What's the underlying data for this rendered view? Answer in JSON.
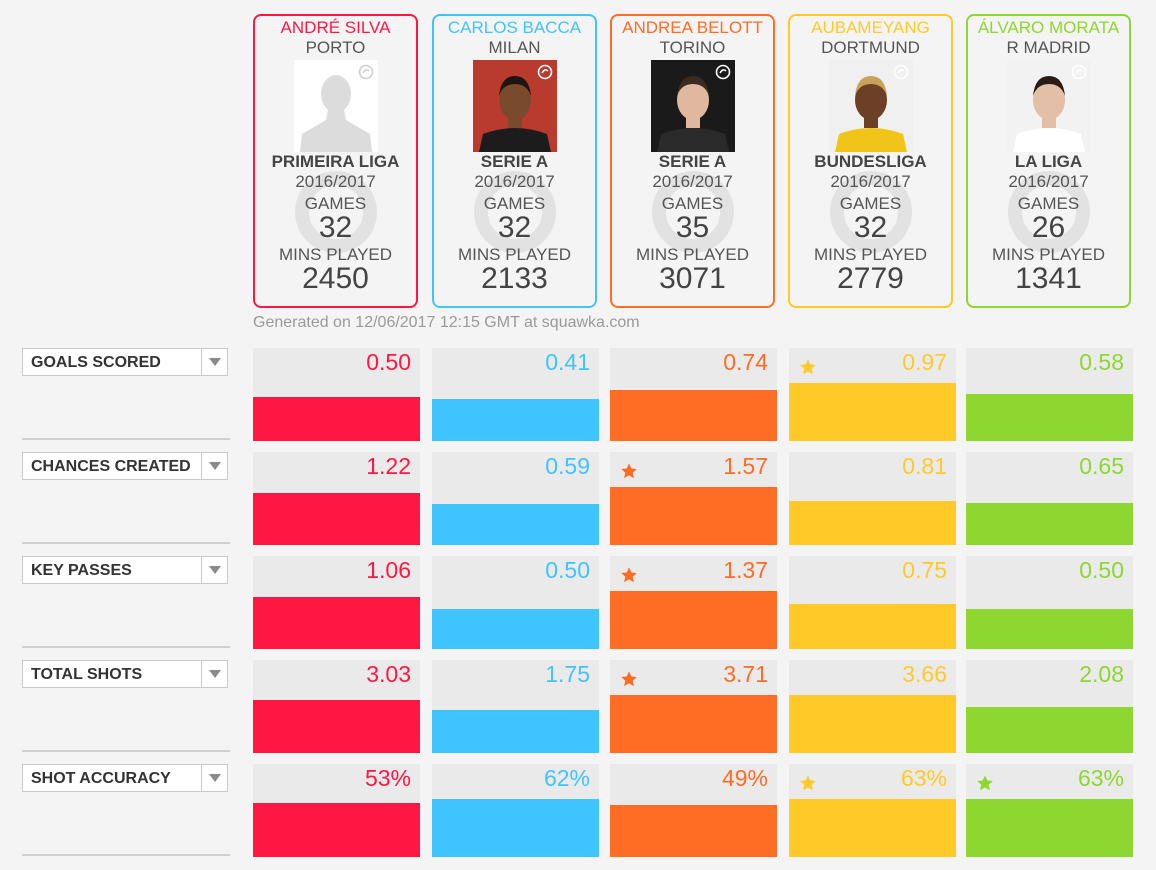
{
  "players": [
    {
      "name": "ANDRÉ SILVA",
      "club": "PORTO",
      "league": "PRIMEIRA LIGA",
      "season": "2016/2017",
      "games": "32",
      "mins": "2450",
      "color": "#ff1744",
      "photo": "placeholder-silhouette"
    },
    {
      "name": "CARLOS BACCA",
      "club": "MILAN",
      "league": "SERIE A",
      "season": "2016/2017",
      "games": "32",
      "mins": "2133",
      "color": "#40c4ff",
      "photo": "player-photo"
    },
    {
      "name": "ANDREA BELOTT",
      "club": "TORINO",
      "league": "SERIE A",
      "season": "2016/2017",
      "games": "35",
      "mins": "3071",
      "color": "#ff6d24",
      "photo": "player-photo"
    },
    {
      "name": "AUBAMEYANG",
      "club": "DORTMUND",
      "league": "BUNDESLIGA",
      "season": "2016/2017",
      "games": "32",
      "mins": "2779",
      "color": "#ffca28",
      "photo": "player-photo"
    },
    {
      "name": "ÁLVARO MORATA",
      "club": "R MADRID",
      "league": "LA LIGA",
      "season": "2016/2017",
      "games": "26",
      "mins": "1341",
      "color": "#8ed630",
      "photo": "player-photo"
    }
  ],
  "labels": {
    "games": "GAMES",
    "mins_played": "MINS PLAYED",
    "generated": "Generated on 12/06/2017 12:15 GMT at squawka.com"
  },
  "icons": {
    "dropdown": "triangle-down-icon",
    "best": "star-icon",
    "badge": "squawka-logo-icon"
  },
  "chart_data": {
    "type": "bar",
    "categories": [
      "ANDRÉ SILVA",
      "CARLOS BACCA",
      "ANDREA BELOTT",
      "AUBAMEYANG",
      "ÁLVARO MORATA"
    ],
    "metrics": [
      {
        "name": "GOALS SCORED",
        "values": [
          0.5,
          0.41,
          0.74,
          0.97,
          0.58
        ],
        "labels": [
          "0.50",
          "0.41",
          "0.74",
          "0.97",
          "0.58"
        ],
        "star": 3
      },
      {
        "name": "CHANCES CREATED",
        "values": [
          1.22,
          0.59,
          1.57,
          0.81,
          0.65
        ],
        "labels": [
          "1.22",
          "0.59",
          "1.57",
          "0.81",
          "0.65"
        ],
        "star": 2
      },
      {
        "name": "KEY PASSES",
        "values": [
          1.06,
          0.5,
          1.37,
          0.75,
          0.5
        ],
        "labels": [
          "1.06",
          "0.50",
          "1.37",
          "0.75",
          "0.50"
        ],
        "star": 2
      },
      {
        "name": "TOTAL SHOTS",
        "values": [
          3.03,
          1.75,
          3.71,
          3.66,
          2.08
        ],
        "labels": [
          "3.03",
          "1.75",
          "3.71",
          "3.66",
          "2.08"
        ],
        "star": 2
      },
      {
        "name": "SHOT ACCURACY",
        "values": [
          53,
          62,
          49,
          63,
          63
        ],
        "labels": [
          "53%",
          "62%",
          "49%",
          "63%",
          "63%"
        ],
        "star": [
          3,
          4
        ]
      }
    ]
  }
}
